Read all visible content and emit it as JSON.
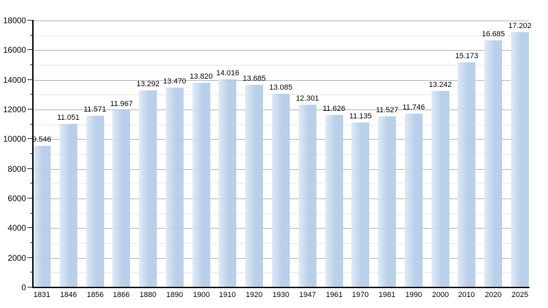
{
  "chart_data": {
    "type": "bar",
    "title": "",
    "xlabel": "",
    "ylabel": "",
    "categories": [
      "1831",
      "1846",
      "1856",
      "1866",
      "1880",
      "1890",
      "1900",
      "1910",
      "1920",
      "1930",
      "1947",
      "1961",
      "1970",
      "1981",
      "1990",
      "2000",
      "2010",
      "2020",
      "2025"
    ],
    "values": [
      9546,
      11051,
      11571,
      11967,
      13292,
      13470,
      13820,
      14016,
      13685,
      13085,
      12301,
      11626,
      11135,
      11527,
      11746,
      13242,
      15173,
      16685,
      17202
    ],
    "value_labels": [
      "9.546",
      "11.051",
      "11.571",
      "11.967",
      "13.292",
      "13.470",
      "13.820",
      "14.016",
      "13.685",
      "13.085",
      "12.301",
      "11.626",
      "11.135",
      "11.527",
      "11.746",
      "13.242",
      "15.173",
      "16.685",
      "17.202"
    ],
    "ylim": [
      0,
      18000
    ],
    "y_major_step": 2000,
    "y_minor_step": 1000,
    "y_tick_labels": [
      "0",
      "2000",
      "4000",
      "6000",
      "8000",
      "10000",
      "12000",
      "14000",
      "16000",
      "18000"
    ],
    "grid": "horizontal, minor every 1000 (light), major every 2000 (gray)",
    "legend": null
  },
  "colors": {
    "bar_main": "#b4cce8",
    "bar_light": "#dde9f5",
    "grid_minor": "#e8e8e8",
    "grid_major": "#b3b3b3",
    "axis": "#000000",
    "text": "#000000",
    "background": "#ffffff"
  }
}
